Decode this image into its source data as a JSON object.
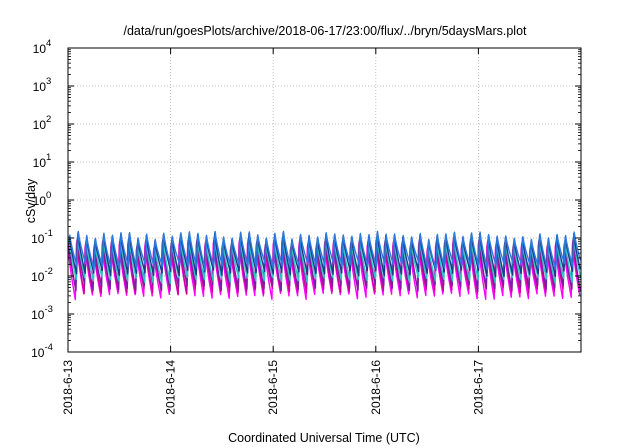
{
  "chart_data": {
    "type": "line",
    "title": "/data/run/goesPlots/archive/2018-06-17/23:00/flux/../bryn/5daysMars.plot",
    "xlabel": "Coordinated Universal Time (UTC)",
    "ylabel": "cSv/day",
    "yscale": "log",
    "ylim": [
      0.0001,
      10000
    ],
    "xlim": [
      "2018-06-13",
      "2018-06-18"
    ],
    "grid": true,
    "x_ticks": [
      "2018-6-13",
      "2018-6-14",
      "2018-6-15",
      "2018-6-16",
      "2018-6-17"
    ],
    "y_ticks": [
      {
        "base": "10",
        "exp": "-4"
      },
      {
        "base": "10",
        "exp": "-3"
      },
      {
        "base": "10",
        "exp": "-2"
      },
      {
        "base": "10",
        "exp": "-1"
      },
      {
        "base": "10",
        "exp": "0"
      },
      {
        "base": "10",
        "exp": "1"
      },
      {
        "base": "10",
        "exp": "2"
      },
      {
        "base": "10",
        "exp": "3"
      },
      {
        "base": "10",
        "exp": "4"
      }
    ],
    "pattern": {
      "cycles_per_day": 12,
      "description": "Sawtooth series: sharp rise each cycle followed by decay",
      "series": [
        {
          "color": "#ff00ff",
          "peak": 0.06,
          "trough": 0.003
        },
        {
          "color": "#cc0099",
          "peak": 0.07,
          "trough": 0.004
        },
        {
          "color": "#7a1fa2",
          "peak": 0.08,
          "trough": 0.005
        },
        {
          "color": "#2ec4c4",
          "peak": 0.09,
          "trough": 0.008
        },
        {
          "color": "#1b3a8c",
          "peak": 0.11,
          "trough": 0.012
        },
        {
          "color": "#2a7ae2",
          "peak": 0.12,
          "trough": 0.018
        }
      ]
    }
  }
}
